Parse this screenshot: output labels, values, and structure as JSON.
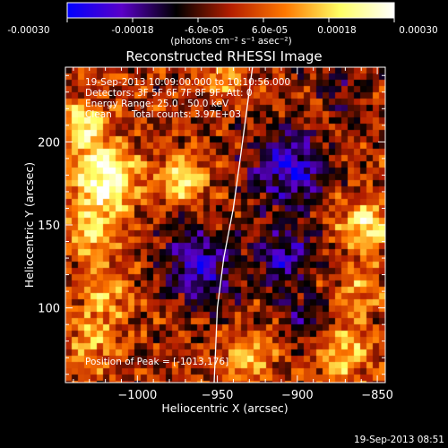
{
  "colorbar": {
    "tick_labels": [
      "-0.00030",
      "-0.00018",
      "-6.0e-05",
      "6.0e-05",
      "0.00018",
      "0.00030"
    ],
    "tick_values": [
      -0.0003,
      -0.00018,
      -6e-05,
      6e-05,
      0.00018,
      0.0003
    ],
    "range": [
      -0.0003,
      0.0003
    ],
    "unit_label": "(photons cm⁻² s⁻¹ asec⁻²)",
    "colors": [
      "#0000ff",
      "#5a00c8",
      "#000000",
      "#b41e00",
      "#ff7800",
      "#ffff64",
      "#ffffff"
    ]
  },
  "chart_data": {
    "type": "heatmap",
    "title": "Reconstructed RHESSI Image",
    "xlabel": "Heliocentric X (arcsec)",
    "ylabel": "Heliocentric Y (arcsec)",
    "xlim": [
      -1045,
      -845
    ],
    "ylim": [
      55,
      245
    ],
    "xticks": [
      -1000,
      -950,
      -900,
      -850
    ],
    "xtick_labels": [
      "−1000",
      "−950",
      "−900",
      "−850"
    ],
    "yticks": [
      100,
      150,
      200
    ],
    "ytick_labels": [
      "100",
      "150",
      "200"
    ],
    "annotations": [
      "19-Sep-2013 10:09:00.000 to 10:10:56.000",
      "Detectors: 3F 5F 6F 7F 8F 9F, Att: 0",
      "Energy Range: 25.0 - 50.0 keV",
      "Clean",
      "Total counts: 3.97E+03"
    ],
    "peak_label": "Position of Peak = [-1013,176]",
    "peak": [
      -1013,
      176
    ],
    "limb_curve": [
      [
        -952,
        55
      ],
      [
        -950,
        100
      ],
      [
        -946,
        130
      ],
      [
        -940,
        160
      ],
      [
        -935,
        195
      ],
      [
        -928,
        245
      ]
    ],
    "sources": [
      {
        "x": -1020,
        "y": 178,
        "amp": 0.0003,
        "r": 14
      },
      {
        "x": -1035,
        "y": 210,
        "amp": 0.00022,
        "r": 10
      },
      {
        "x": -1030,
        "y": 145,
        "amp": 0.00018,
        "r": 11
      },
      {
        "x": -1020,
        "y": 110,
        "amp": 0.00016,
        "r": 11
      },
      {
        "x": -1028,
        "y": 80,
        "amp": 0.00015,
        "r": 11
      },
      {
        "x": -972,
        "y": 178,
        "amp": 0.00024,
        "r": 9
      },
      {
        "x": -945,
        "y": 240,
        "amp": 0.00014,
        "r": 9
      },
      {
        "x": -930,
        "y": 70,
        "amp": 0.00015,
        "r": 11
      },
      {
        "x": -870,
        "y": 72,
        "amp": 0.00018,
        "r": 11
      },
      {
        "x": -858,
        "y": 150,
        "amp": 0.00022,
        "r": 11
      },
      {
        "x": -862,
        "y": 110,
        "amp": 0.00012,
        "r": 10
      },
      {
        "x": -890,
        "y": 220,
        "amp": 8e-05,
        "r": 9
      },
      {
        "x": -960,
        "y": 125,
        "amp": -0.0002,
        "r": 17
      },
      {
        "x": -905,
        "y": 185,
        "amp": -0.00024,
        "r": 17
      },
      {
        "x": -908,
        "y": 130,
        "amp": -0.00018,
        "r": 13
      },
      {
        "x": -875,
        "y": 230,
        "amp": -0.00012,
        "r": 12
      },
      {
        "x": -895,
        "y": 95,
        "amp": -0.00012,
        "r": 10
      }
    ]
  },
  "footer": {
    "timestamp": "19-Sep-2013 08:51"
  }
}
